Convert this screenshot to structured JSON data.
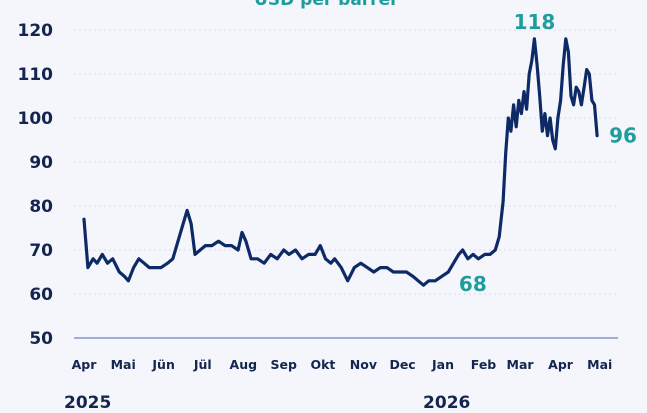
{
  "chart_data": {
    "type": "line",
    "subtitle": "USD per barrel",
    "ylim": [
      50,
      120
    ],
    "yticks": [
      50,
      60,
      70,
      80,
      90,
      100,
      110,
      120
    ],
    "grid": "horizontal dotted",
    "xlim": [
      "2025-04-01",
      "2026-05-15"
    ],
    "xticks": [
      {
        "label": "Apr",
        "date": "2025-04-01"
      },
      {
        "label": "Mai",
        "date": "2025-05-01"
      },
      {
        "label": "Jün",
        "date": "2025-06-01"
      },
      {
        "label": "Jül",
        "date": "2025-07-01"
      },
      {
        "label": "Aug",
        "date": "2025-08-01"
      },
      {
        "label": "Sep",
        "date": "2025-09-01"
      },
      {
        "label": "Okt",
        "date": "2025-10-01"
      },
      {
        "label": "Nov",
        "date": "2025-11-01"
      },
      {
        "label": "Dec",
        "date": "2025-12-01"
      },
      {
        "label": "Jan",
        "date": "2026-01-01"
      },
      {
        "label": "Feb",
        "date": "2026-02-01"
      },
      {
        "label": "Mar",
        "date": "2026-03-01"
      },
      {
        "label": "Apr",
        "date": "2026-04-01"
      },
      {
        "label": "Mai",
        "date": "2026-05-01"
      }
    ],
    "years": [
      {
        "label": "2025",
        "date": "2025-04-01"
      },
      {
        "label": "2026",
        "date": "2026-01-01"
      }
    ],
    "colors": {
      "line": "#0e2a66",
      "annotation": "#1f9c9c",
      "axis": "#9bb0d6",
      "grid": "#d5dcec"
    },
    "annotations": [
      {
        "label": "118",
        "date": "2026-03-12",
        "value": 118,
        "position": "above"
      },
      {
        "label": "96",
        "date": "2026-04-29",
        "value": 96,
        "position": "right"
      },
      {
        "label": "68",
        "date": "2026-01-20",
        "value": 68,
        "position": "below"
      }
    ],
    "series": [
      {
        "points": [
          [
            "2025-04-01",
            77
          ],
          [
            "2025-04-04",
            66
          ],
          [
            "2025-04-08",
            68
          ],
          [
            "2025-04-11",
            67
          ],
          [
            "2025-04-15",
            69
          ],
          [
            "2025-04-19",
            67
          ],
          [
            "2025-04-23",
            68
          ],
          [
            "2025-04-28",
            65
          ],
          [
            "2025-05-02",
            64
          ],
          [
            "2025-05-05",
            63
          ],
          [
            "2025-05-09",
            66
          ],
          [
            "2025-05-13",
            68
          ],
          [
            "2025-05-17",
            67
          ],
          [
            "2025-05-21",
            66
          ],
          [
            "2025-05-26",
            66
          ],
          [
            "2025-05-30",
            66
          ],
          [
            "2025-06-04",
            67
          ],
          [
            "2025-06-08",
            68
          ],
          [
            "2025-06-12",
            72
          ],
          [
            "2025-06-16",
            76
          ],
          [
            "2025-06-19",
            79
          ],
          [
            "2025-06-22",
            76
          ],
          [
            "2025-06-25",
            69
          ],
          [
            "2025-06-29",
            70
          ],
          [
            "2025-07-03",
            71
          ],
          [
            "2025-07-08",
            71
          ],
          [
            "2025-07-13",
            72
          ],
          [
            "2025-07-18",
            71
          ],
          [
            "2025-07-23",
            71
          ],
          [
            "2025-07-28",
            70
          ],
          [
            "2025-07-31",
            74
          ],
          [
            "2025-08-03",
            72
          ],
          [
            "2025-08-07",
            68
          ],
          [
            "2025-08-12",
            68
          ],
          [
            "2025-08-17",
            67
          ],
          [
            "2025-08-22",
            69
          ],
          [
            "2025-08-27",
            68
          ],
          [
            "2025-09-01",
            70
          ],
          [
            "2025-09-05",
            69
          ],
          [
            "2025-09-10",
            70
          ],
          [
            "2025-09-15",
            68
          ],
          [
            "2025-09-20",
            69
          ],
          [
            "2025-09-25",
            69
          ],
          [
            "2025-09-29",
            71
          ],
          [
            "2025-10-03",
            68
          ],
          [
            "2025-10-07",
            67
          ],
          [
            "2025-10-10",
            68
          ],
          [
            "2025-10-15",
            66
          ],
          [
            "2025-10-20",
            63
          ],
          [
            "2025-10-25",
            66
          ],
          [
            "2025-10-30",
            67
          ],
          [
            "2025-11-04",
            66
          ],
          [
            "2025-11-09",
            65
          ],
          [
            "2025-11-14",
            66
          ],
          [
            "2025-11-19",
            66
          ],
          [
            "2025-11-24",
            65
          ],
          [
            "2025-11-29",
            65
          ],
          [
            "2025-12-04",
            65
          ],
          [
            "2025-12-09",
            64
          ],
          [
            "2025-12-13",
            63
          ],
          [
            "2025-12-17",
            62
          ],
          [
            "2025-12-21",
            63
          ],
          [
            "2025-12-26",
            63
          ],
          [
            "2025-12-31",
            64
          ],
          [
            "2026-01-05",
            65
          ],
          [
            "2026-01-09",
            67
          ],
          [
            "2026-01-13",
            69
          ],
          [
            "2026-01-16",
            70
          ],
          [
            "2026-01-20",
            68
          ],
          [
            "2026-01-24",
            69
          ],
          [
            "2026-01-28",
            68
          ],
          [
            "2026-02-02",
            69
          ],
          [
            "2026-02-06",
            69
          ],
          [
            "2026-02-10",
            70
          ],
          [
            "2026-02-13",
            73
          ],
          [
            "2026-02-16",
            81
          ],
          [
            "2026-02-18",
            92
          ],
          [
            "2026-02-20",
            100
          ],
          [
            "2026-02-22",
            97
          ],
          [
            "2026-02-24",
            103
          ],
          [
            "2026-02-26",
            98
          ],
          [
            "2026-02-28",
            104
          ],
          [
            "2026-03-02",
            101
          ],
          [
            "2026-03-04",
            106
          ],
          [
            "2026-03-06",
            102
          ],
          [
            "2026-03-08",
            110
          ],
          [
            "2026-03-10",
            113
          ],
          [
            "2026-03-12",
            118
          ],
          [
            "2026-03-14",
            112
          ],
          [
            "2026-03-16",
            105
          ],
          [
            "2026-03-18",
            97
          ],
          [
            "2026-03-20",
            101
          ],
          [
            "2026-03-22",
            96
          ],
          [
            "2026-03-24",
            100
          ],
          [
            "2026-03-26",
            95
          ],
          [
            "2026-03-28",
            93
          ],
          [
            "2026-03-30",
            100
          ],
          [
            "2026-04-01",
            104
          ],
          [
            "2026-04-03",
            112
          ],
          [
            "2026-04-05",
            118
          ],
          [
            "2026-04-07",
            115
          ],
          [
            "2026-04-09",
            105
          ],
          [
            "2026-04-11",
            103
          ],
          [
            "2026-04-13",
            107
          ],
          [
            "2026-04-15",
            106
          ],
          [
            "2026-04-17",
            103
          ],
          [
            "2026-04-19",
            107
          ],
          [
            "2026-04-21",
            111
          ],
          [
            "2026-04-23",
            110
          ],
          [
            "2026-04-25",
            104
          ],
          [
            "2026-04-27",
            103
          ],
          [
            "2026-04-29",
            96
          ]
        ]
      }
    ]
  }
}
